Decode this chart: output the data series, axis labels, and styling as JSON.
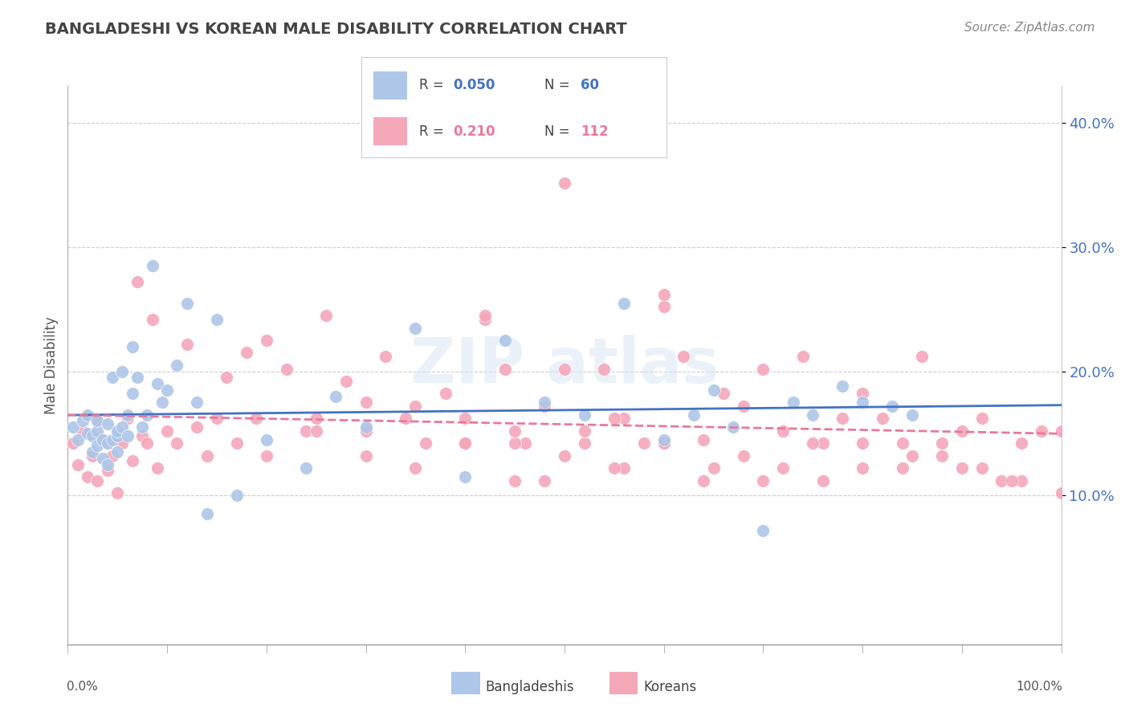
{
  "title": "BANGLADESHI VS KOREAN MALE DISABILITY CORRELATION CHART",
  "source": "Source: ZipAtlas.com",
  "ylabel": "Male Disability",
  "xlim": [
    0.0,
    1.0
  ],
  "ylim": [
    -0.02,
    0.43
  ],
  "yticks": [
    0.1,
    0.2,
    0.3,
    0.4
  ],
  "ytick_labels": [
    "10.0%",
    "20.0%",
    "30.0%",
    "40.0%"
  ],
  "blue_color": "#aec6e8",
  "pink_color": "#f4a7b9",
  "blue_line_color": "#4472c4",
  "pink_line_color": "#e8799a",
  "bangladeshi_x": [
    0.005,
    0.01,
    0.015,
    0.02,
    0.02,
    0.025,
    0.025,
    0.03,
    0.03,
    0.03,
    0.035,
    0.035,
    0.04,
    0.04,
    0.04,
    0.045,
    0.045,
    0.05,
    0.05,
    0.05,
    0.055,
    0.055,
    0.06,
    0.06,
    0.065,
    0.065,
    0.07,
    0.075,
    0.08,
    0.085,
    0.09,
    0.095,
    0.1,
    0.11,
    0.12,
    0.13,
    0.14,
    0.15,
    0.17,
    0.2,
    0.24,
    0.27,
    0.3,
    0.35,
    0.4,
    0.44,
    0.48,
    0.52,
    0.56,
    0.6,
    0.63,
    0.65,
    0.67,
    0.7,
    0.73,
    0.75,
    0.78,
    0.8,
    0.83,
    0.85
  ],
  "bangladeshi_y": [
    0.155,
    0.145,
    0.16,
    0.15,
    0.165,
    0.135,
    0.148,
    0.152,
    0.14,
    0.16,
    0.13,
    0.145,
    0.125,
    0.142,
    0.158,
    0.145,
    0.195,
    0.148,
    0.152,
    0.135,
    0.155,
    0.2,
    0.148,
    0.165,
    0.22,
    0.182,
    0.195,
    0.155,
    0.165,
    0.285,
    0.19,
    0.175,
    0.185,
    0.205,
    0.255,
    0.175,
    0.085,
    0.242,
    0.1,
    0.145,
    0.122,
    0.18,
    0.155,
    0.235,
    0.115,
    0.225,
    0.175,
    0.165,
    0.255,
    0.145,
    0.165,
    0.185,
    0.155,
    0.072,
    0.175,
    0.165,
    0.188,
    0.175,
    0.172,
    0.165
  ],
  "korean_x": [
    0.005,
    0.01,
    0.015,
    0.02,
    0.025,
    0.03,
    0.03,
    0.035,
    0.04,
    0.04,
    0.045,
    0.05,
    0.05,
    0.055,
    0.06,
    0.065,
    0.07,
    0.075,
    0.08,
    0.085,
    0.09,
    0.1,
    0.11,
    0.12,
    0.13,
    0.14,
    0.15,
    0.16,
    0.17,
    0.18,
    0.19,
    0.2,
    0.22,
    0.24,
    0.26,
    0.28,
    0.3,
    0.32,
    0.34,
    0.36,
    0.38,
    0.4,
    0.42,
    0.44,
    0.46,
    0.48,
    0.5,
    0.52,
    0.54,
    0.56,
    0.58,
    0.6,
    0.62,
    0.64,
    0.66,
    0.68,
    0.7,
    0.72,
    0.74,
    0.76,
    0.78,
    0.8,
    0.82,
    0.84,
    0.86,
    0.88,
    0.9,
    0.92,
    0.94,
    0.96,
    0.98,
    1.0,
    0.5,
    0.55,
    0.6,
    0.42,
    0.45,
    0.48,
    0.52,
    0.56,
    0.6,
    0.64,
    0.68,
    0.72,
    0.76,
    0.8,
    0.84,
    0.88,
    0.92,
    0.96,
    0.25,
    0.3,
    0.35,
    0.4,
    0.45,
    0.5,
    0.55,
    0.6,
    0.65,
    0.7,
    0.75,
    0.8,
    0.85,
    0.9,
    0.95,
    1.0,
    0.2,
    0.25,
    0.3,
    0.35,
    0.4,
    0.45
  ],
  "korean_y": [
    0.142,
    0.125,
    0.152,
    0.115,
    0.132,
    0.112,
    0.16,
    0.145,
    0.12,
    0.142,
    0.132,
    0.148,
    0.102,
    0.142,
    0.162,
    0.128,
    0.272,
    0.148,
    0.142,
    0.242,
    0.122,
    0.152,
    0.142,
    0.222,
    0.155,
    0.132,
    0.162,
    0.195,
    0.142,
    0.215,
    0.162,
    0.225,
    0.202,
    0.152,
    0.245,
    0.192,
    0.175,
    0.212,
    0.162,
    0.142,
    0.182,
    0.162,
    0.242,
    0.202,
    0.142,
    0.172,
    0.352,
    0.142,
    0.202,
    0.162,
    0.142,
    0.252,
    0.212,
    0.145,
    0.182,
    0.172,
    0.202,
    0.152,
    0.212,
    0.142,
    0.162,
    0.182,
    0.162,
    0.142,
    0.212,
    0.142,
    0.152,
    0.162,
    0.112,
    0.142,
    0.152,
    0.102,
    0.202,
    0.162,
    0.262,
    0.245,
    0.142,
    0.112,
    0.152,
    0.122,
    0.142,
    0.112,
    0.132,
    0.122,
    0.112,
    0.142,
    0.122,
    0.132,
    0.122,
    0.112,
    0.152,
    0.132,
    0.122,
    0.142,
    0.112,
    0.132,
    0.122,
    0.142,
    0.122,
    0.112,
    0.142,
    0.122,
    0.132,
    0.122,
    0.112,
    0.152,
    0.132,
    0.162,
    0.152,
    0.172,
    0.142,
    0.152
  ]
}
